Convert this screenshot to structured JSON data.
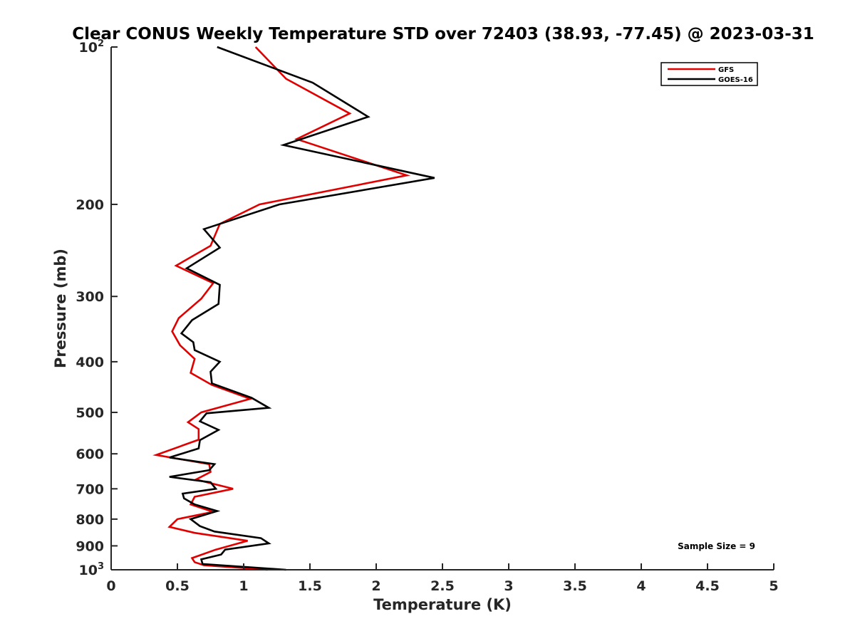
{
  "chart_data": {
    "type": "line",
    "title": "Clear CONUS Weekly Temperature STD over 72403 (38.93, -77.45) @ 2023-03-31",
    "xlabel": "Temperature (K)",
    "ylabel": "Pressure (mb)",
    "xlim": [
      0,
      5
    ],
    "ylim": [
      1000,
      100
    ],
    "y_scale": "log",
    "y_reversed": true,
    "x_ticks": [
      {
        "value": 0,
        "label": "0"
      },
      {
        "value": 0.5,
        "label": "0.5"
      },
      {
        "value": 1,
        "label": "1"
      },
      {
        "value": 1.5,
        "label": "1.5"
      },
      {
        "value": 2,
        "label": "2"
      },
      {
        "value": 2.5,
        "label": "2.5"
      },
      {
        "value": 3,
        "label": "3"
      },
      {
        "value": 3.5,
        "label": "3.5"
      },
      {
        "value": 4,
        "label": "4"
      },
      {
        "value": 4.5,
        "label": "4.5"
      },
      {
        "value": 5,
        "label": "5"
      }
    ],
    "y_ticks": [
      {
        "value": 100,
        "base": "10",
        "exp": "2"
      },
      {
        "value": 200,
        "label": "200"
      },
      {
        "value": 300,
        "label": "300"
      },
      {
        "value": 400,
        "label": "400"
      },
      {
        "value": 500,
        "label": "500"
      },
      {
        "value": 600,
        "label": "600"
      },
      {
        "value": 700,
        "label": "700"
      },
      {
        "value": 800,
        "label": "800"
      },
      {
        "value": 900,
        "label": "900"
      },
      {
        "value": 1000,
        "base": "10",
        "exp": "3"
      }
    ],
    "grid": false,
    "legend": {
      "placement": "top-right"
    },
    "annotation": "Sample Size = 9",
    "series": [
      {
        "name": "GFS",
        "color": "#e00000",
        "points": [
          [
            1.09,
            100
          ],
          [
            1.32,
            115
          ],
          [
            1.8,
            134
          ],
          [
            1.4,
            150
          ],
          [
            2.23,
            176
          ],
          [
            1.12,
            200
          ],
          [
            0.82,
            218
          ],
          [
            0.75,
            240
          ],
          [
            0.49,
            262
          ],
          [
            0.77,
            283
          ],
          [
            0.68,
            303
          ],
          [
            0.51,
            330
          ],
          [
            0.46,
            350
          ],
          [
            0.52,
            372
          ],
          [
            0.63,
            395
          ],
          [
            0.6,
            420
          ],
          [
            0.76,
            443
          ],
          [
            1.05,
            471
          ],
          [
            0.68,
            500
          ],
          [
            0.58,
            522
          ],
          [
            0.66,
            538
          ],
          [
            0.66,
            564
          ],
          [
            0.34,
            603
          ],
          [
            0.74,
            628
          ],
          [
            0.75,
            650
          ],
          [
            0.64,
            672
          ],
          [
            0.92,
            700
          ],
          [
            0.63,
            725
          ],
          [
            0.6,
            750
          ],
          [
            0.77,
            775
          ],
          [
            0.5,
            800
          ],
          [
            0.44,
            828
          ],
          [
            0.63,
            850
          ],
          [
            1.03,
            880
          ],
          [
            0.79,
            915
          ],
          [
            0.61,
            950
          ],
          [
            0.63,
            967
          ],
          [
            0.7,
            980
          ],
          [
            1.18,
            1000
          ]
        ]
      },
      {
        "name": "GOES-16",
        "color": "#000000",
        "points": [
          [
            0.8,
            100
          ],
          [
            1.52,
            117
          ],
          [
            1.94,
            136
          ],
          [
            1.3,
            154
          ],
          [
            2.44,
            178
          ],
          [
            1.27,
            200
          ],
          [
            0.7,
            223
          ],
          [
            0.82,
            242
          ],
          [
            0.57,
            265
          ],
          [
            0.82,
            285
          ],
          [
            0.81,
            310
          ],
          [
            0.61,
            333
          ],
          [
            0.53,
            353
          ],
          [
            0.62,
            367
          ],
          [
            0.63,
            380
          ],
          [
            0.82,
            400
          ],
          [
            0.75,
            418
          ],
          [
            0.76,
            440
          ],
          [
            1.06,
            469
          ],
          [
            1.19,
            490
          ],
          [
            0.72,
            502
          ],
          [
            0.67,
            520
          ],
          [
            0.81,
            540
          ],
          [
            0.67,
            565
          ],
          [
            0.66,
            586
          ],
          [
            0.44,
            610
          ],
          [
            0.78,
            628
          ],
          [
            0.74,
            645
          ],
          [
            0.44,
            664
          ],
          [
            0.75,
            680
          ],
          [
            0.79,
            700
          ],
          [
            0.54,
            715
          ],
          [
            0.55,
            730
          ],
          [
            0.63,
            750
          ],
          [
            0.8,
            772
          ],
          [
            0.6,
            800
          ],
          [
            0.67,
            825
          ],
          [
            0.78,
            845
          ],
          [
            1.13,
            870
          ],
          [
            1.19,
            890
          ],
          [
            0.86,
            915
          ],
          [
            0.83,
            935
          ],
          [
            0.68,
            955
          ],
          [
            0.69,
            975
          ],
          [
            1.32,
            1000
          ]
        ]
      }
    ]
  }
}
